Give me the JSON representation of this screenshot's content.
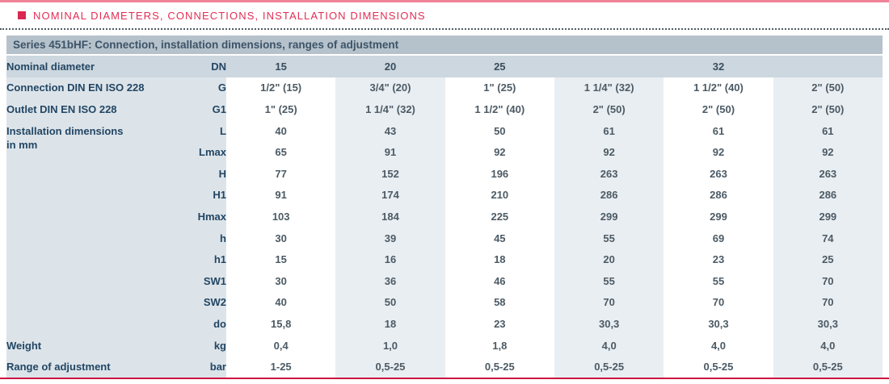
{
  "page": {
    "heading": "NOMINAL DIAMETERS, CONNECTIONS, INSTALLATION DIMENSIONS"
  },
  "colors": {
    "accent_pink_line": "#ee8398",
    "accent_red": "#e22e54",
    "bullet_red": "#d92950",
    "bottom_line_red": "#cd1340",
    "series_bar_bg": "#b6c2cb",
    "series_bar_text": "#3c5368",
    "label_bg": "#dce4ea",
    "dn_row_bg": "#ccd7df",
    "col_gray": "#e9eef2",
    "label_text": "#234663",
    "value_text": "#4c5a64",
    "dn_value_text": "#3a4d5c"
  },
  "table": {
    "title": "Series 451bHF: Connection, installation dimensions, ranges of adjustment",
    "dn_row": {
      "label": "Nominal diameter",
      "code": "DN",
      "values": [
        "15",
        "20",
        "25"
      ],
      "span_value": "32",
      "span_cols": 3
    },
    "rows": [
      {
        "label": "Connection DIN EN ISO 228",
        "code": "G",
        "values": [
          "1/2\" (15)",
          "3/4\" (20)",
          "1\" (25)",
          "1 1/4\" (32)",
          "1 1/2\" (40)",
          "2\" (50)"
        ]
      },
      {
        "label": "Outlet DIN EN ISO 228",
        "code": "G1",
        "values": [
          "1\" (25)",
          "1 1/4\" (32)",
          "1 1/2\" (40)",
          "2\" (50)",
          "2\" (50)",
          "2\" (50)"
        ]
      },
      {
        "label": "Installation dimensions\nin mm",
        "label_rowspan": 10,
        "code": "L",
        "values": [
          "40",
          "43",
          "50",
          "61",
          "61",
          "61"
        ]
      },
      {
        "code": "Lmax",
        "values": [
          "65",
          "91",
          "92",
          "92",
          "92",
          "92"
        ]
      },
      {
        "code": "H",
        "values": [
          "77",
          "152",
          "196",
          "263",
          "263",
          "263"
        ]
      },
      {
        "code": "H1",
        "values": [
          "91",
          "174",
          "210",
          "286",
          "286",
          "286"
        ]
      },
      {
        "code": "Hmax",
        "values": [
          "103",
          "184",
          "225",
          "299",
          "299",
          "299"
        ]
      },
      {
        "code": "h",
        "values": [
          "30",
          "39",
          "45",
          "55",
          "69",
          "74"
        ]
      },
      {
        "code": "h1",
        "values": [
          "15",
          "16",
          "18",
          "20",
          "23",
          "25"
        ]
      },
      {
        "code": "SW1",
        "values": [
          "30",
          "36",
          "46",
          "55",
          "55",
          "70"
        ]
      },
      {
        "code": "SW2",
        "values": [
          "40",
          "50",
          "58",
          "70",
          "70",
          "70"
        ]
      },
      {
        "code": "do",
        "values": [
          "15,8",
          "18",
          "23",
          "30,3",
          "30,3",
          "30,3"
        ]
      },
      {
        "label": "Weight",
        "code": "kg",
        "values": [
          "0,4",
          "1,0",
          "1,8",
          "4,0",
          "4,0",
          "4,0"
        ]
      },
      {
        "label": "Range of adjustment",
        "code": "bar",
        "values": [
          "1-25",
          "0,5-25",
          "0,5-25",
          "0,5-25",
          "0,5-25",
          "0,5-25"
        ]
      }
    ]
  }
}
